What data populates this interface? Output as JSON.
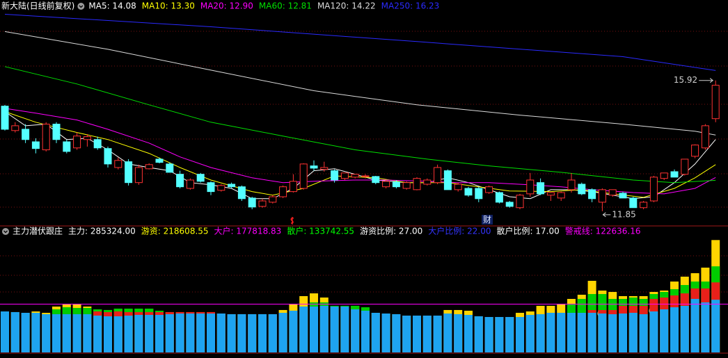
{
  "chart_data": [
    {
      "type": "candlestick",
      "title": "新大陆(日线前复权)",
      "event_label": "财",
      "up_color": "#ff3232",
      "down_color": "#54ffff",
      "ylim": [
        11.5,
        18.25
      ],
      "open": [
        15.12,
        14.36,
        14.4,
        14.01,
        13.76,
        14.56,
        14.01,
        13.82,
        14.08,
        14.08,
        13.8,
        13.21,
        13.39,
        12.74,
        13.17,
        13.47,
        13.32,
        13.0,
        12.56,
        13.0,
        12.74,
        12.5,
        12.69,
        12.61,
        12.26,
        12.0,
        12.13,
        12.3,
        12.46,
        12.56,
        13.26,
        13.15,
        13.11,
        12.87,
        12.91,
        12.93,
        12.93,
        12.61,
        12.76,
        12.56,
        12.52,
        12.69,
        12.74,
        13.11,
        12.52,
        12.56,
        12.56,
        12.43,
        12.43,
        12.13,
        11.96,
        12.39,
        12.74,
        12.35,
        12.26,
        12.52,
        12.69,
        12.52,
        12.13,
        12.35,
        12.41,
        12.26,
        11.96,
        12.17,
        12.87,
        13.08,
        13.0,
        13.56,
        13.82,
        14.73
      ],
      "high": [
        15.16,
        14.62,
        14.56,
        14.12,
        14.62,
        14.62,
        14.08,
        14.3,
        14.25,
        14.17,
        13.86,
        13.52,
        13.47,
        13.3,
        13.34,
        13.52,
        13.37,
        13.11,
        12.87,
        13.04,
        12.78,
        12.69,
        12.74,
        12.65,
        12.3,
        12.24,
        12.35,
        12.65,
        13.0,
        13.34,
        13.43,
        13.39,
        13.15,
        13.04,
        13.0,
        13.0,
        12.95,
        12.82,
        12.82,
        12.78,
        12.91,
        12.87,
        13.3,
        13.15,
        12.74,
        12.61,
        12.61,
        12.65,
        12.46,
        12.17,
        12.39,
        13.04,
        12.87,
        12.43,
        12.46,
        13.04,
        12.74,
        12.56,
        12.56,
        12.52,
        12.46,
        12.3,
        12.17,
        12.95,
        13.04,
        13.15,
        13.47,
        13.93,
        14.56,
        15.92
      ],
      "low": [
        14.36,
        14.3,
        13.97,
        13.65,
        13.71,
        13.97,
        13.65,
        13.76,
        13.86,
        13.76,
        13.21,
        13.15,
        12.65,
        12.67,
        13.15,
        13.34,
        13.06,
        12.56,
        12.52,
        12.74,
        12.35,
        12.46,
        12.56,
        12.17,
        11.91,
        11.96,
        12.09,
        12.26,
        12.43,
        12.52,
        13.11,
        13.08,
        12.74,
        12.82,
        12.87,
        12.87,
        12.69,
        12.56,
        12.56,
        12.52,
        12.5,
        12.65,
        12.69,
        12.52,
        12.46,
        12.3,
        12.13,
        12.39,
        12.09,
        11.96,
        11.91,
        12.3,
        12.35,
        12.17,
        12.17,
        12.43,
        12.35,
        12.13,
        11.85,
        12.3,
        12.26,
        11.96,
        11.91,
        12.13,
        12.82,
        12.91,
        12.96,
        13.5,
        13.76,
        14.62
      ],
      "close": [
        14.4,
        14.51,
        14.08,
        13.8,
        14.56,
        14.08,
        13.71,
        14.19,
        14.17,
        13.82,
        13.32,
        13.43,
        12.74,
        13.21,
        13.3,
        13.37,
        13.06,
        12.61,
        12.82,
        12.78,
        12.46,
        12.65,
        12.61,
        12.24,
        11.98,
        12.17,
        12.3,
        12.61,
        12.78,
        13.32,
        13.19,
        13.21,
        12.82,
        13.04,
        13.0,
        12.95,
        12.74,
        12.78,
        12.61,
        12.74,
        12.87,
        12.82,
        13.21,
        12.52,
        12.69,
        12.35,
        12.24,
        12.61,
        12.13,
        12.0,
        12.35,
        12.82,
        12.39,
        12.43,
        12.43,
        12.82,
        12.39,
        12.24,
        12.52,
        12.52,
        12.26,
        11.96,
        12.13,
        12.91,
        13.04,
        12.91,
        13.47,
        13.91,
        14.51,
        15.77
      ],
      "series": [
        {
          "name": "MA5: 14.08",
          "color": "#ffffff",
          "x": [
            0,
            2,
            4,
            6,
            8,
            10,
            12,
            14,
            16,
            18,
            20,
            22,
            24,
            26,
            28,
            30,
            32,
            34,
            36,
            39,
            41,
            43,
            45,
            47,
            49,
            51,
            53,
            55,
            57,
            59,
            61,
            63,
            65,
            67,
            69
          ],
          "values": [
            14.95,
            14.51,
            14.56,
            14.08,
            14.12,
            13.76,
            13.32,
            13.21,
            13.11,
            12.74,
            12.67,
            12.56,
            12.24,
            12.24,
            12.56,
            13.11,
            13.17,
            13.0,
            12.82,
            12.74,
            12.74,
            12.89,
            12.74,
            12.52,
            12.3,
            12.24,
            12.52,
            12.52,
            12.46,
            12.35,
            12.24,
            12.3,
            12.74,
            13.32,
            14.08
          ]
        },
        {
          "name": "MA10: 13.30",
          "color": "#ffff00",
          "x": [
            0,
            3,
            7,
            10,
            14,
            17,
            20,
            24,
            26,
            29,
            32,
            36,
            39,
            43,
            46,
            49,
            53,
            56,
            59,
            62,
            65,
            67,
            69
          ],
          "values": [
            14.95,
            14.62,
            14.3,
            14.08,
            13.65,
            13.21,
            12.82,
            12.46,
            12.35,
            12.56,
            12.95,
            12.89,
            12.74,
            12.74,
            12.61,
            12.48,
            12.46,
            12.52,
            12.39,
            12.28,
            12.56,
            12.89,
            13.3
          ]
        },
        {
          "name": "MA20: 12.90",
          "color": "#ff00ff",
          "x": [
            0,
            3,
            7,
            10,
            14,
            17,
            20,
            24,
            27,
            30,
            34,
            37,
            41,
            44,
            47,
            51,
            54,
            57,
            61,
            64,
            67,
            69
          ],
          "values": [
            15.05,
            14.9,
            14.69,
            14.4,
            13.97,
            13.54,
            13.21,
            12.89,
            12.74,
            12.78,
            12.82,
            12.82,
            12.78,
            12.74,
            12.74,
            12.67,
            12.61,
            12.52,
            12.43,
            12.39,
            12.56,
            12.9
          ]
        },
        {
          "name": "MA60: 12.81",
          "color": "#00e000",
          "x": [
            0,
            7,
            14,
            20,
            27,
            34,
            41,
            47,
            54,
            61,
            65,
            69
          ],
          "values": [
            16.35,
            15.81,
            15.16,
            14.62,
            14.19,
            13.76,
            13.47,
            13.26,
            13.06,
            12.82,
            12.74,
            12.81
          ]
        },
        {
          "name": "MA120: 14.22",
          "color": "#dcdcdc",
          "x": [
            0,
            10,
            20,
            30,
            40,
            50,
            60,
            67,
            69
          ],
          "values": [
            17.44,
            16.89,
            16.24,
            15.6,
            15.16,
            14.84,
            14.56,
            14.34,
            14.22
          ]
        },
        {
          "name": "MA250: 16.23",
          "color": "#2a2aff",
          "x": [
            0,
            20,
            40,
            60,
            69
          ],
          "values": [
            17.98,
            17.59,
            17.13,
            16.66,
            16.23
          ]
        }
      ]
    },
    {
      "type": "overlay_bar",
      "title": "主力潜伏跟庄",
      "ylim": [
        0,
        300000
      ],
      "series": [
        {
          "name": "主力: 285324.00",
          "color": "#ffd400",
          "text_color": "#ffffff",
          "values": [
            104100,
            102400,
            100600,
            104100,
            100600,
            116500,
            121800,
            121800,
            116500,
            109400,
            107700,
            111200,
            111200,
            111200,
            111200,
            105900,
            102400,
            102400,
            102400,
            102400,
            102400,
            98800,
            97100,
            97100,
            97100,
            97100,
            97100,
            107700,
            121800,
            143000,
            150000,
            139400,
            118300,
            118300,
            118300,
            114700,
            100600,
            98800,
            97100,
            93500,
            93500,
            93500,
            93500,
            107700,
            107700,
            105900,
            91800,
            90000,
            90000,
            90000,
            100600,
            104100,
            118300,
            118300,
            121800,
            135900,
            146500,
            181800,
            157100,
            153600,
            143000,
            143000,
            143000,
            153600,
            157100,
            180000,
            192400,
            201200,
            215300,
            285324
          ]
        },
        {
          "name": "游资: 218608.55",
          "color": "#00cc00",
          "text_color": "#ffff00",
          "values": [
            104100,
            102400,
            100600,
            100600,
            97100,
            109400,
            114700,
            113000,
            113000,
            109400,
            107700,
            111200,
            111200,
            111200,
            111200,
            105900,
            102400,
            102400,
            102400,
            102400,
            102400,
            98800,
            97100,
            97100,
            97100,
            97100,
            97100,
            100600,
            105900,
            116500,
            127100,
            127100,
            118300,
            118300,
            118300,
            114700,
            100600,
            98800,
            97100,
            93500,
            93500,
            93500,
            93500,
            98800,
            97100,
            95300,
            91800,
            90000,
            90000,
            90000,
            90000,
            95300,
            97100,
            100600,
            100600,
            121800,
            135900,
            148300,
            148300,
            135900,
            135900,
            139400,
            135900,
            148300,
            153600,
            160600,
            171200,
            180000,
            180000,
            218608.55
          ]
        },
        {
          "name": "大户: 177818.83",
          "color": "#e8201a",
          "text_color": "#ff00ff",
          "values": [
            104100,
            102400,
            100600,
            100600,
            97100,
            97100,
            97100,
            97100,
            97100,
            104100,
            102400,
            104100,
            102400,
            102400,
            102400,
            102400,
            102400,
            102400,
            102400,
            102400,
            102400,
            98800,
            97100,
            97100,
            97100,
            97100,
            97100,
            100600,
            105900,
            116500,
            116500,
            118300,
            116500,
            116500,
            109400,
            105900,
            100600,
            98800,
            97100,
            93500,
            93500,
            93500,
            93500,
            98800,
            97100,
            95300,
            91800,
            90000,
            90000,
            90000,
            90000,
            95300,
            97100,
            100600,
            100600,
            100600,
            100600,
            107700,
            107700,
            107700,
            118300,
            118300,
            118300,
            135900,
            139400,
            144700,
            150000,
            162400,
            162400,
            177818.83
          ]
        },
        {
          "name": "散户: 133742.55",
          "color": "#1ea4f0",
          "text_color": "#00ff00",
          "values": [
            104100,
            102400,
            100600,
            100600,
            97100,
            97100,
            97100,
            97100,
            97100,
            93500,
            91800,
            91800,
            93500,
            95300,
            95300,
            95300,
            97100,
            98800,
            98800,
            98800,
            98800,
            98800,
            97100,
            97100,
            97100,
            97100,
            97100,
            100600,
            105900,
            116500,
            116500,
            118300,
            116500,
            116500,
            109400,
            105900,
            100600,
            98800,
            97100,
            93500,
            93500,
            93500,
            93500,
            98800,
            97100,
            95300,
            91800,
            90000,
            90000,
            90000,
            90000,
            95300,
            97100,
            100600,
            100600,
            100600,
            100600,
            100600,
            98800,
            97100,
            98800,
            100600,
            97100,
            104100,
            109400,
            114700,
            118300,
            135900,
            127100,
            133742.55
          ]
        }
      ],
      "stats": [
        {
          "text": "游资比例: 27.00",
          "color": "#ffffff"
        },
        {
          "text": "大户比例: 22.00",
          "color": "#3434ff"
        },
        {
          "text": "散户比例: 17.00",
          "color": "#ffffff"
        }
      ],
      "reference_line": {
        "name": "警戒线: 122636.16",
        "value": 122636.16,
        "color": "#ff00ff"
      }
    }
  ]
}
